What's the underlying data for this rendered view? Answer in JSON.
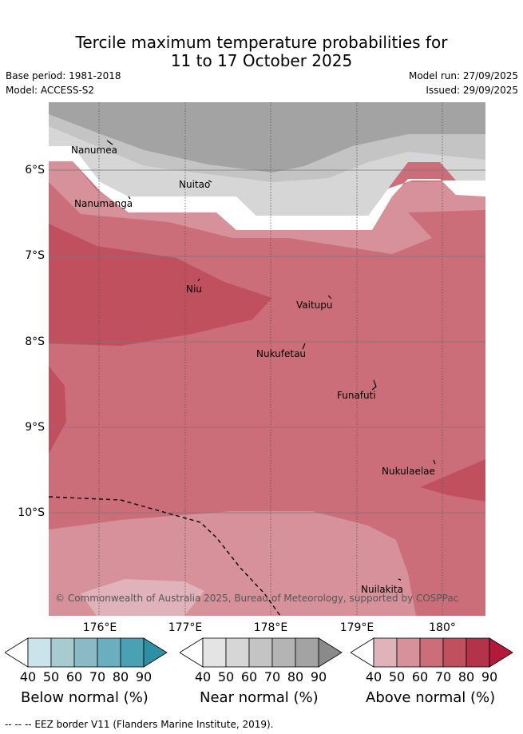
{
  "title": {
    "line1": "Tercile maximum temperature probabilities for",
    "line2": "11 to 17 October 2025"
  },
  "meta": {
    "base_period": "Base period: 1981-2018",
    "model": "Model: ACCESS-S2",
    "model_run": "Model run: 27/09/2025",
    "issued": "Issued: 29/09/2025"
  },
  "map": {
    "lat_labels": [
      "6°S",
      "7°S",
      "8°S",
      "9°S",
      "10°S"
    ],
    "lon_labels": [
      "176°E",
      "177°E",
      "178°E",
      "179°E",
      "180°"
    ],
    "places": [
      "Nanumea",
      "Nuitao",
      "Nanumanga",
      "Niu",
      "Vaitupu",
      "Nukufetau",
      "Funafuti",
      "Nukulaelae",
      "Nuilakita"
    ],
    "copyright": "© Commonwealth of Australia 2025, Bureau of Meteorology, supported by COSPPac"
  },
  "legend": {
    "ticks": [
      "40",
      "50",
      "60",
      "70",
      "80",
      "90"
    ],
    "below": {
      "caption": "Below normal (%)",
      "colors": [
        "#ffffff",
        "#cbe3ea",
        "#a8cbd2",
        "#8abac6",
        "#6aafbf",
        "#4aa1b3",
        "#2e8ea3"
      ]
    },
    "near": {
      "caption": "Near normal (%)",
      "colors": [
        "#ffffff",
        "#e4e4e4",
        "#d6d6d6",
        "#c4c4c4",
        "#b4b4b4",
        "#a3a3a3",
        "#8a8a8a"
      ]
    },
    "above": {
      "caption": "Above normal (%)",
      "colors": [
        "#ffffff",
        "#e0b3ba",
        "#d6919a",
        "#cb6e79",
        "#c0505e",
        "#b3344a",
        "#b31a3a"
      ]
    }
  },
  "footer": "--  --  -- EEZ border V11 (Flanders Marine Institute, 2019)."
}
